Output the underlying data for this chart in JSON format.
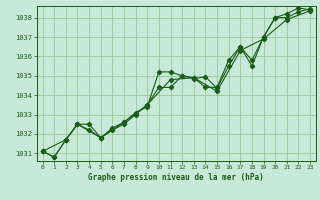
{
  "title": "Graphe pression niveau de la mer (hPa)",
  "background_color": "#c8e8d8",
  "grid_color": "#96c896",
  "line_color": "#1a5c1a",
  "xlim": [
    -0.5,
    23.5
  ],
  "ylim": [
    1030.6,
    1038.6
  ],
  "yticks": [
    1031,
    1032,
    1033,
    1034,
    1035,
    1036,
    1037,
    1038
  ],
  "xticks": [
    0,
    1,
    2,
    3,
    4,
    5,
    6,
    7,
    8,
    9,
    10,
    11,
    12,
    13,
    14,
    15,
    16,
    17,
    18,
    19,
    20,
    21,
    22,
    23
  ],
  "s1_x": [
    0,
    1,
    2,
    3,
    4,
    5,
    6,
    7,
    8,
    9,
    10,
    11,
    12,
    13,
    14,
    15,
    16,
    17,
    18,
    19,
    20,
    21,
    22,
    23
  ],
  "s1_y": [
    1031.1,
    1030.8,
    1031.7,
    1032.5,
    1032.2,
    1031.8,
    1032.3,
    1032.6,
    1033.1,
    1033.4,
    1035.2,
    1035.2,
    1035.0,
    1034.85,
    1034.95,
    1034.35,
    1035.5,
    1036.5,
    1035.8,
    1037.0,
    1038.0,
    1038.0,
    1038.3,
    1038.45
  ],
  "s2_x": [
    0,
    1,
    2,
    3,
    4,
    5,
    6,
    7,
    8,
    9,
    10,
    11,
    12,
    13,
    14,
    15,
    16,
    17,
    18,
    19,
    20,
    21,
    22,
    23
  ],
  "s2_y": [
    1031.1,
    1030.8,
    1031.7,
    1032.5,
    1032.5,
    1031.8,
    1032.2,
    1032.5,
    1033.0,
    1033.5,
    1034.4,
    1034.4,
    1035.0,
    1034.9,
    1034.4,
    1034.4,
    1035.8,
    1036.5,
    1035.5,
    1037.0,
    1038.0,
    1038.2,
    1038.5,
    1038.4
  ],
  "s3_x": [
    0,
    2,
    3,
    5,
    7,
    9,
    11,
    13,
    15,
    17,
    19,
    21,
    23
  ],
  "s3_y": [
    1031.1,
    1031.7,
    1032.5,
    1031.8,
    1032.6,
    1033.5,
    1034.8,
    1034.9,
    1034.2,
    1036.3,
    1036.9,
    1037.9,
    1038.35
  ],
  "marker": "D",
  "markersize": 2.2,
  "linewidth": 0.8
}
